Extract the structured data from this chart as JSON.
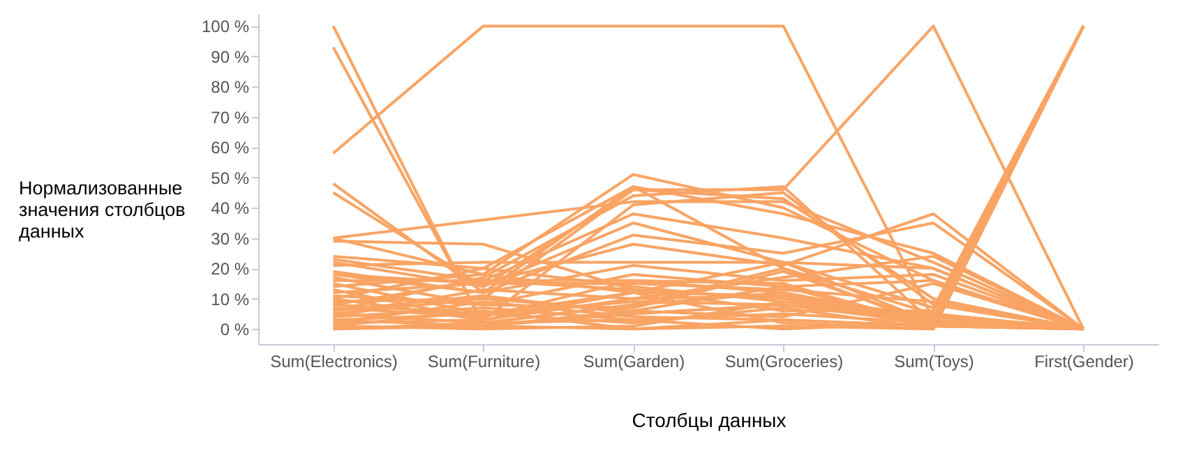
{
  "chart_data": {
    "type": "line",
    "xlabel": "Столбцы данных",
    "ylabel": "Нормализованные значения столбцов данных",
    "categories": [
      "Sum(Electronics)",
      "Sum(Furniture)",
      "Sum(Garden)",
      "Sum(Groceries)",
      "Sum(Toys)",
      "First(Gender)"
    ],
    "ylim": [
      -5,
      104
    ],
    "yticks": [
      {
        "value": 0,
        "label": "0 %"
      },
      {
        "value": 10,
        "label": "10 %"
      },
      {
        "value": 20,
        "label": "20 %"
      },
      {
        "value": 30,
        "label": "30 %"
      },
      {
        "value": 40,
        "label": "40 %"
      },
      {
        "value": 50,
        "label": "50 %"
      },
      {
        "value": 60,
        "label": "60 %"
      },
      {
        "value": 70,
        "label": "70 %"
      },
      {
        "value": 80,
        "label": "80 %"
      },
      {
        "value": 90,
        "label": "90 %"
      },
      {
        "value": 100,
        "label": "100 %"
      }
    ],
    "line_style": "solid",
    "marker": "none",
    "series": [
      {
        "color": "#f9a464",
        "values": [
          58,
          100,
          100,
          100,
          3,
          100
        ]
      },
      {
        "color": "#f9a464",
        "values": [
          5,
          10,
          46,
          46,
          100,
          0
        ]
      },
      {
        "color": "#f9a464",
        "values": [
          100,
          1,
          5,
          8,
          2,
          0
        ]
      },
      {
        "color": "#f9a464",
        "values": [
          93,
          2,
          8,
          12,
          3,
          0
        ]
      },
      {
        "color": "#f9a464",
        "values": [
          48,
          12,
          47,
          20,
          5,
          0
        ]
      },
      {
        "color": "#f9a464",
        "values": [
          45,
          14,
          46,
          43,
          10,
          0
        ]
      },
      {
        "color": "#f9a464",
        "values": [
          30,
          36,
          42,
          42,
          22,
          0
        ]
      },
      {
        "color": "#f9a464",
        "values": [
          29,
          28,
          13,
          10,
          4,
          100
        ]
      },
      {
        "color": "#f9a464",
        "values": [
          30,
          18,
          51,
          40,
          16,
          0
        ]
      },
      {
        "color": "#f9a464",
        "values": [
          24,
          20,
          47,
          38,
          25,
          0
        ]
      },
      {
        "color": "#f9a464",
        "values": [
          23,
          16,
          38,
          30,
          20,
          0
        ]
      },
      {
        "color": "#f9a464",
        "values": [
          22,
          14,
          35,
          22,
          2,
          100
        ]
      },
      {
        "color": "#f9a464",
        "values": [
          21,
          22,
          22,
          22,
          20,
          0
        ]
      },
      {
        "color": "#f9a464",
        "values": [
          19,
          12,
          31,
          25,
          35,
          0
        ]
      },
      {
        "color": "#f9a464",
        "values": [
          18,
          15,
          28,
          21,
          38,
          0
        ]
      },
      {
        "color": "#f9a464",
        "values": [
          18,
          12,
          21,
          16,
          18,
          0
        ]
      },
      {
        "color": "#f9a464",
        "values": [
          17,
          8,
          18,
          14,
          16,
          0
        ]
      },
      {
        "color": "#f9a464",
        "values": [
          16,
          16,
          16,
          15,
          1,
          100
        ]
      },
      {
        "color": "#f9a464",
        "values": [
          15,
          5,
          12,
          22,
          7,
          100
        ]
      },
      {
        "color": "#f9a464",
        "values": [
          14,
          18,
          12,
          11,
          4,
          0
        ]
      },
      {
        "color": "#f9a464",
        "values": [
          13,
          3,
          10,
          17,
          24,
          0
        ]
      },
      {
        "color": "#f9a464",
        "values": [
          12,
          15,
          15,
          13,
          9,
          0
        ]
      },
      {
        "color": "#f9a464",
        "values": [
          11,
          8,
          7,
          19,
          2,
          100
        ]
      },
      {
        "color": "#f9a464",
        "values": [
          10,
          20,
          14,
          9,
          3,
          0
        ]
      },
      {
        "color": "#f9a464",
        "values": [
          9,
          10,
          6,
          14,
          1,
          100
        ]
      },
      {
        "color": "#f9a464",
        "values": [
          8,
          5,
          9,
          8,
          2,
          0
        ]
      },
      {
        "color": "#f9a464",
        "values": [
          8,
          16,
          13,
          6,
          6,
          100
        ]
      },
      {
        "color": "#f9a464",
        "values": [
          7,
          4,
          16,
          12,
          1,
          0
        ]
      },
      {
        "color": "#f9a464",
        "values": [
          6,
          11,
          5,
          8,
          3,
          100
        ]
      },
      {
        "color": "#f9a464",
        "values": [
          5,
          2,
          8,
          20,
          1,
          0
        ]
      },
      {
        "color": "#f9a464",
        "values": [
          4,
          7,
          3,
          5,
          2,
          100
        ]
      },
      {
        "color": "#f9a464",
        "values": [
          4,
          13,
          10,
          11,
          1,
          0
        ]
      },
      {
        "color": "#f9a464",
        "values": [
          3,
          1,
          6,
          4,
          15,
          0
        ]
      },
      {
        "color": "#f9a464",
        "values": [
          3,
          5,
          2,
          7,
          0,
          100
        ]
      },
      {
        "color": "#f9a464",
        "values": [
          2,
          9,
          4,
          3,
          1,
          0
        ]
      },
      {
        "color": "#f9a464",
        "values": [
          2,
          3,
          12,
          2,
          0,
          100
        ]
      },
      {
        "color": "#f9a464",
        "values": [
          1,
          0,
          1,
          9,
          5,
          0
        ]
      },
      {
        "color": "#f9a464",
        "values": [
          1,
          6,
          0,
          1,
          0,
          100
        ]
      },
      {
        "color": "#f9a464",
        "values": [
          0,
          2,
          3,
          0,
          2,
          0
        ]
      },
      {
        "color": "#f9a464",
        "values": [
          0,
          1,
          0,
          3,
          1,
          100
        ]
      },
      {
        "color": "#f9a464",
        "values": [
          6,
          17,
          44,
          47,
          2,
          0
        ]
      },
      {
        "color": "#f9a464",
        "values": [
          10,
          3,
          41,
          45,
          8,
          0
        ]
      }
    ]
  }
}
